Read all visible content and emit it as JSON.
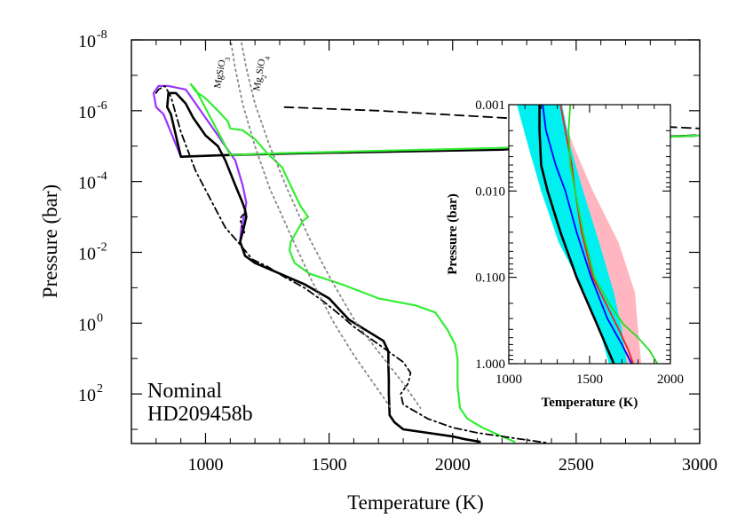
{
  "chart_data": [
    {
      "type": "line",
      "xlabel": "Temperature (K)",
      "ylabel": "Pressure (bar)",
      "xlim": [
        700,
        3000
      ],
      "ylog": true,
      "ylim_log10": [
        -8,
        3.4
      ],
      "y_inverted": true,
      "xticks": [
        1000,
        1500,
        2000,
        2500,
        3000
      ],
      "yticks": [
        {
          "exp": -8,
          "label": "10",
          "sup": "-8"
        },
        {
          "exp": -6,
          "label": "10",
          "sup": "-6"
        },
        {
          "exp": -4,
          "label": "10",
          "sup": "-4"
        },
        {
          "exp": -2,
          "label": "10",
          "sup": "-2"
        },
        {
          "exp": 0,
          "label": "10",
          "sup": "0"
        },
        {
          "exp": 2,
          "label": "10",
          "sup": "2"
        }
      ],
      "annotations": [
        "Nominal",
        "HD209458b"
      ],
      "mineral_labels": {
        "mgsio3": "MgSiO",
        "mgsio3_sub": "3",
        "mg2sio4_a": "Mg",
        "mg2sio4_sub1": "2",
        "mg2sio4_b": "SiO",
        "mg2sio4_sub2": "4"
      },
      "series": [
        {
          "style": "solid",
          "color": "#9933ff",
          "x": [
            2985,
            2800,
            2600,
            2400,
            2200,
            1800,
            1400,
            1100,
            900,
            830,
            800,
            790,
            810,
            850,
            920,
            950,
            1000,
            1050,
            1080,
            1120,
            1150,
            1165,
            1155,
            1145,
            1140,
            1160,
            1200,
            1300,
            1400,
            1500,
            1580,
            1650,
            1720,
            1740,
            1740,
            1742,
            1742,
            1745,
            1765,
            1800,
            1900,
            2000,
            2050,
            2110
          ],
          "y": [
            -5.3,
            -5.25,
            -5.1,
            -5.0,
            -4.9,
            -4.85,
            -4.8,
            -4.75,
            -4.7,
            -5.9,
            -6.1,
            -6.5,
            -6.7,
            -6.7,
            -6.6,
            -6.3,
            -5.8,
            -5.3,
            -5.0,
            -4.6,
            -3.9,
            -3.4,
            -3.0,
            -2.7,
            -2.3,
            -1.9,
            -1.7,
            -1.4,
            -1.1,
            -0.7,
            -0.1,
            0.2,
            0.5,
            0.8,
            1.2,
            1.6,
            2.0,
            2.6,
            2.8,
            3.0,
            3.1,
            3.2,
            3.28,
            3.35
          ]
        },
        {
          "style": "solid",
          "color": "#000000",
          "x": [
            2985,
            2800,
            2600,
            2400,
            2200,
            1800,
            1400,
            1100,
            900,
            860,
            845,
            850,
            880,
            920,
            950,
            1000,
            1050,
            1080,
            1120,
            1150,
            1160,
            1165,
            1155,
            1140,
            1160,
            1200,
            1300,
            1400,
            1500,
            1580,
            1650,
            1720,
            1740,
            1740,
            1742,
            1742,
            1745,
            1765,
            1800,
            1900,
            2000,
            2050,
            2110
          ],
          "y": [
            -5.3,
            -5.25,
            -5.1,
            -5.0,
            -4.9,
            -4.85,
            -4.8,
            -4.75,
            -4.7,
            -5.9,
            -6.1,
            -6.5,
            -6.5,
            -6.2,
            -5.8,
            -5.3,
            -5.0,
            -4.6,
            -3.9,
            -3.4,
            -3.2,
            -3.0,
            -2.7,
            -2.3,
            -1.9,
            -1.7,
            -1.4,
            -1.1,
            -0.7,
            -0.1,
            0.2,
            0.5,
            0.8,
            1.2,
            1.6,
            2.0,
            2.6,
            2.8,
            3.0,
            3.1,
            3.2,
            3.28,
            3.35
          ]
        },
        {
          "style": "solid",
          "color": "#33ee33",
          "x": [
            3000,
            2800,
            2600,
            2400,
            2200,
            1900,
            1600,
            1300,
            1100,
            960,
            940,
            960,
            1000,
            1050,
            1090,
            1100,
            1150,
            1200,
            1250,
            1310,
            1350,
            1385,
            1415,
            1395,
            1370,
            1345,
            1340,
            1360,
            1420,
            1550,
            1700,
            1850,
            1930,
            1980,
            2010,
            2020,
            2020,
            2030,
            2060,
            2120,
            2200,
            2250
          ],
          "y": [
            -5.3,
            -5.25,
            -5.1,
            -5.0,
            -4.95,
            -4.9,
            -4.85,
            -4.8,
            -4.75,
            -6.6,
            -6.75,
            -6.55,
            -6.35,
            -6.0,
            -5.7,
            -5.5,
            -5.45,
            -5.2,
            -4.8,
            -4.4,
            -3.8,
            -3.3,
            -3.0,
            -2.9,
            -2.6,
            -2.3,
            -2.05,
            -1.7,
            -1.4,
            -1.1,
            -0.7,
            -0.5,
            -0.3,
            0.2,
            0.6,
            1.0,
            1.8,
            2.4,
            2.7,
            2.95,
            3.2,
            3.35
          ]
        },
        {
          "style": "dashdot",
          "color": "#000000",
          "x": [
            800,
            810,
            835,
            860,
            880,
            900,
            960,
            1020,
            1080,
            1130,
            1190,
            1250,
            1320,
            1400,
            1480,
            1550,
            1600,
            1650,
            1700,
            1760,
            1800,
            1830,
            1820,
            1790,
            1800,
            1900,
            2000,
            2100,
            2200,
            2300,
            2380
          ],
          "y": [
            -6.5,
            -6.6,
            -6.7,
            -6.4,
            -5.9,
            -5.4,
            -4.3,
            -3.5,
            -2.7,
            -2.3,
            -1.8,
            -1.6,
            -1.3,
            -1.0,
            -0.6,
            -0.2,
            0.1,
            0.35,
            0.6,
            0.9,
            1.1,
            1.4,
            1.7,
            2.0,
            2.3,
            2.7,
            2.95,
            3.1,
            3.2,
            3.3,
            3.38
          ]
        },
        {
          "style": "dashdot",
          "color": "#000000",
          "x": [
            1165,
            1150,
            1140,
            1145,
            1160
          ],
          "y": [
            -3.1,
            -3.05,
            -2.95,
            -2.8,
            -2.5
          ]
        },
        {
          "style": "dashed",
          "color": "#000000",
          "x": [
            1320,
            1700,
            2200,
            2700,
            3000
          ],
          "y": [
            -6.1,
            -6.0,
            -5.8,
            -5.6,
            -5.5
          ]
        },
        {
          "style": "dotted",
          "color": "#888888",
          "x": [
            1090,
            1120,
            1150,
            1200,
            1260,
            1350,
            1430,
            1520,
            1600,
            1680,
            1750
          ],
          "y": [
            -8.5,
            -7.2,
            -6.2,
            -5.0,
            -3.8,
            -2.4,
            -1.2,
            0.0,
            0.9,
            1.7,
            2.4
          ]
        },
        {
          "style": "dotted",
          "color": "#888888",
          "x": [
            1130,
            1165,
            1200,
            1260,
            1330,
            1420,
            1510,
            1610,
            1710,
            1800,
            1870
          ],
          "y": [
            -8.5,
            -7.2,
            -6.2,
            -5.0,
            -3.8,
            -2.4,
            -1.2,
            0.0,
            0.9,
            1.7,
            2.4
          ]
        }
      ]
    },
    {
      "type": "line",
      "xlabel": "Temperature (K)",
      "ylabel": "Pressure (bar)",
      "xlim": [
        1000,
        2000
      ],
      "ylog": true,
      "ylim": [
        0.001,
        1.0
      ],
      "y_inverted": true,
      "xticks": [
        1000,
        1500,
        2000
      ],
      "yticks": [
        {
          "value": 0.001,
          "label": "0.001"
        },
        {
          "value": 0.01,
          "label": "0.010"
        },
        {
          "value": 0.1,
          "label": "0.100"
        },
        {
          "value": 1.0,
          "label": "1.000"
        }
      ],
      "bands": [
        {
          "color": "#ffb6c1",
          "upper_x": [
            1310,
            1400,
            1520,
            1680,
            1780,
            1800,
            1820
          ],
          "lower_x": [
            1190,
            1260,
            1360,
            1500,
            1620,
            1680,
            1720
          ],
          "y": [
            0.001,
            0.003,
            0.01,
            0.04,
            0.15,
            0.4,
            1.0
          ]
        },
        {
          "color": "#00f0f0",
          "upper_x": [
            1330,
            1380,
            1460,
            1560,
            1650,
            1700,
            1730
          ],
          "lower_x": [
            1050,
            1120,
            1200,
            1310,
            1470,
            1560,
            1620
          ],
          "y": [
            0.001,
            0.003,
            0.01,
            0.04,
            0.15,
            0.4,
            1.0
          ]
        }
      ],
      "series": [
        {
          "color": "#000000",
          "x": [
            1190,
            1190,
            1200,
            1240,
            1320,
            1420,
            1530,
            1650
          ],
          "y": [
            0.001,
            0.002,
            0.005,
            0.01,
            0.03,
            0.1,
            0.3,
            1.0
          ]
        },
        {
          "color": "#0000ff",
          "x": [
            1210,
            1230,
            1290,
            1350,
            1420,
            1510,
            1610,
            1700,
            1760
          ],
          "y": [
            0.001,
            0.002,
            0.005,
            0.01,
            0.03,
            0.1,
            0.3,
            0.6,
            1.0
          ]
        },
        {
          "color": "#ee2222",
          "x": [
            1320,
            1350,
            1390,
            1410,
            1450,
            1520,
            1600,
            1680,
            1740,
            1770
          ],
          "y": [
            0.001,
            0.002,
            0.005,
            0.01,
            0.03,
            0.1,
            0.2,
            0.4,
            0.7,
            1.0
          ]
        },
        {
          "color": "#22dd22",
          "x": [
            1380,
            1370,
            1380,
            1410,
            1460,
            1530,
            1620,
            1710,
            1800,
            1870,
            1920
          ],
          "y": [
            0.001,
            0.002,
            0.005,
            0.01,
            0.03,
            0.1,
            0.2,
            0.35,
            0.5,
            0.7,
            1.0
          ]
        }
      ]
    }
  ]
}
